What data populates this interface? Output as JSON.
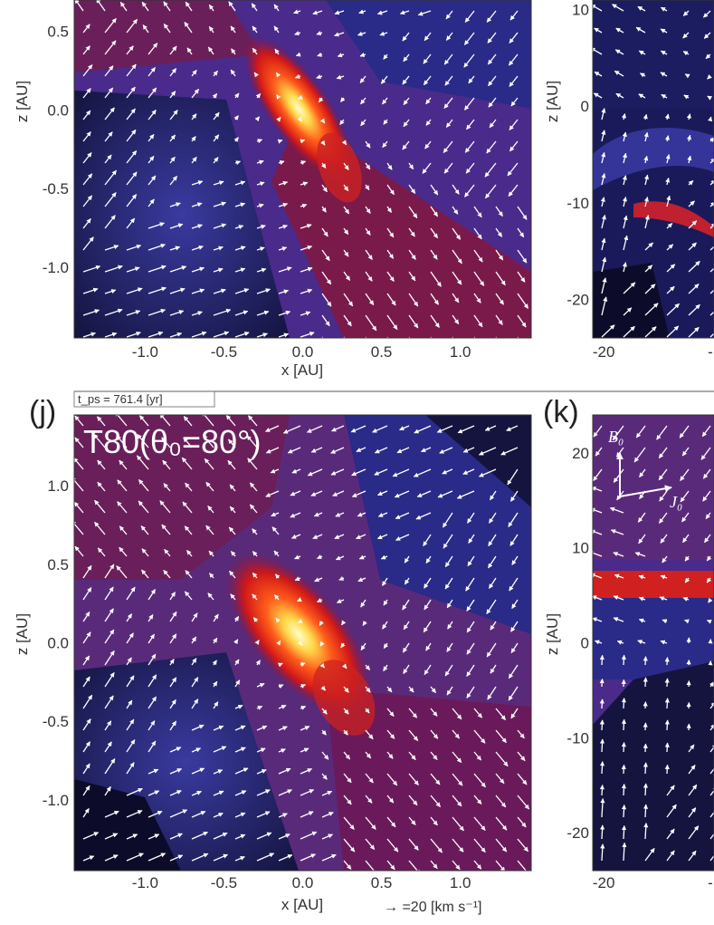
{
  "figure": {
    "time_label": "t_ps = 761.4 [yr]",
    "velocity_scale": "→ =20 [km s⁻¹]"
  },
  "colors": {
    "background_low": "#0a0a30",
    "background_mid": "#2a2a88",
    "background_red": "#7a1a4a",
    "hot": "#ffea90",
    "arrow": "#ffffff"
  },
  "chart_data": [
    {
      "type": "heatmap",
      "panel": "top-left (partial)",
      "label": "",
      "title": "",
      "xlabel": "x [AU]",
      "ylabel": "z [AU]",
      "xlim": [
        -1.45,
        1.45
      ],
      "ylim": [
        -1.45,
        0.7
      ],
      "x_ticks": [
        "-1.0",
        "-0.5",
        "0.0",
        "0.5",
        "1.0"
      ],
      "y_ticks": [
        "0.5",
        "0.0",
        "-0.5",
        "-1.0"
      ],
      "overlay": "velocity vectors",
      "disk_angle_deg": 55
    },
    {
      "type": "heatmap",
      "panel": "top-right (partial)",
      "label": "",
      "title": "",
      "xlabel": "",
      "ylabel": "z [AU]",
      "xlim": [
        -23,
        10
      ],
      "ylim": [
        -24,
        11
      ],
      "x_ticks": [
        "-20",
        "-"
      ],
      "y_ticks": [
        "10",
        "0",
        "-10",
        "-20"
      ],
      "overlay": "velocity vectors"
    },
    {
      "type": "heatmap",
      "panel": "(j)",
      "label": "(j)",
      "title": "T80(θ₀=80°)",
      "xlabel": "x [AU]",
      "ylabel": "z [AU]",
      "xlim": [
        -1.45,
        1.45
      ],
      "ylim": [
        -1.45,
        1.45
      ],
      "x_ticks": [
        "-1.0",
        "-0.5",
        "0.0",
        "0.5",
        "1.0"
      ],
      "y_ticks": [
        "1.0",
        "0.5",
        "0.0",
        "-0.5",
        "-1.0"
      ],
      "overlay": "velocity vectors",
      "disk_angle_deg": 50
    },
    {
      "type": "heatmap",
      "panel": "(k) (partial)",
      "label": "(k)",
      "title": "",
      "xlabel": "",
      "ylabel": "z [AU]",
      "xlim": [
        -23,
        10
      ],
      "ylim": [
        -24,
        24
      ],
      "x_ticks": [
        "-20",
        "-"
      ],
      "y_ticks": [
        "20",
        "10",
        "0",
        "-10",
        "-20"
      ],
      "vector_labels": [
        "B₀",
        "J₀"
      ],
      "overlay": "velocity vectors"
    }
  ]
}
